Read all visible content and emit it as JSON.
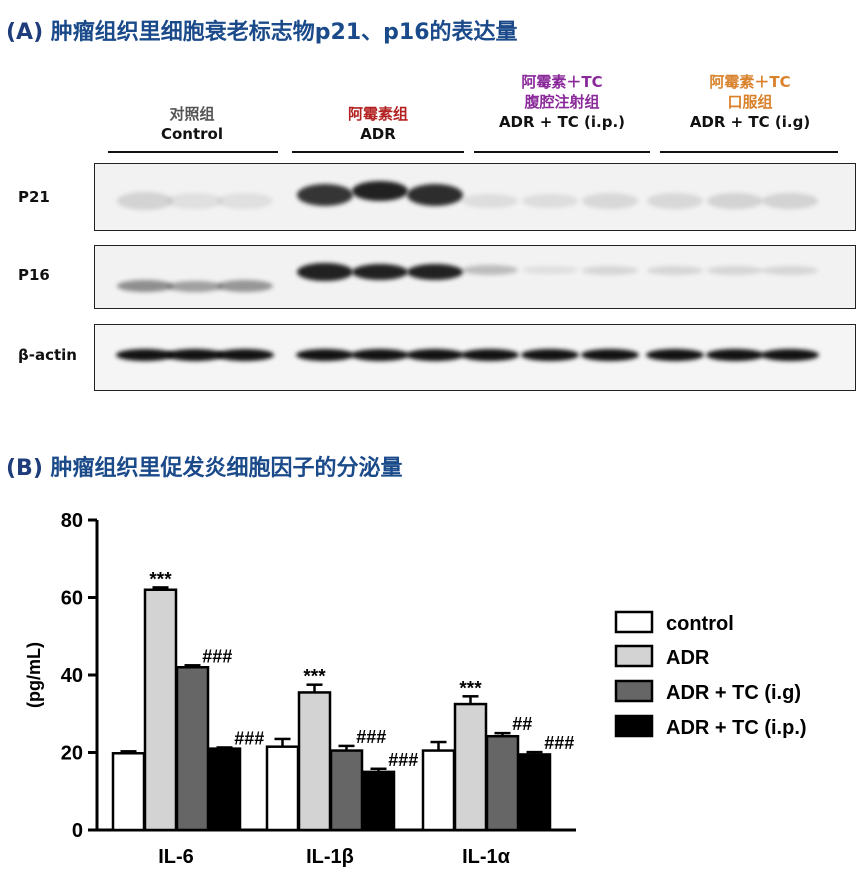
{
  "panel_a": {
    "title_tag": "(A)",
    "title_text": " 肿瘤组织里细胞衰老标志物p21、p16的表达量",
    "groups": [
      {
        "cn": "对照组",
        "en": "Control",
        "cn_color": "#555555"
      },
      {
        "cn": "阿霉素组",
        "en": "ADR",
        "cn_color": "#b32222"
      },
      {
        "cn1": "阿霉素＋TC",
        "cn2": "腹腔注射组",
        "en": "ADR + TC (i.p.)",
        "cn_color": "#8a2a9a"
      },
      {
        "cn1": "阿霉素＋TC",
        "cn2": "口服组",
        "en": "ADR + TC (i.g)",
        "cn_color": "#d9822b"
      }
    ],
    "rows": [
      "P21",
      "P16",
      "β-actin"
    ]
  },
  "panel_b": {
    "title_tag": "(B)",
    "title_text": " 肿瘤组织里促发炎细胞因子的分泌量"
  },
  "chart_data": {
    "type": "bar",
    "categories": [
      "IL-6",
      "IL-1β",
      "IL-1α"
    ],
    "ylabel": "(pg/mL)",
    "ylim": [
      0,
      80
    ],
    "yticks": [
      "0",
      "20",
      "40",
      "60",
      "80"
    ],
    "series": [
      {
        "name": "control",
        "color": "#ffffff",
        "values": [
          19.8,
          21.5,
          20.5
        ],
        "errors": [
          0.5,
          2.0,
          2.2
        ],
        "annotations": [
          "",
          "",
          ""
        ]
      },
      {
        "name": "ADR",
        "color": "#d3d3d3",
        "values": [
          62,
          35.5,
          32.5
        ],
        "errors": [
          0.6,
          2.0,
          2.0
        ],
        "annotations": [
          "***",
          "***",
          "***"
        ]
      },
      {
        "name": "ADR + TC (i.g)",
        "color": "#666666",
        "values": [
          42,
          20.5,
          24.2
        ],
        "errors": [
          0.5,
          1.2,
          0.8
        ],
        "annotations": [
          "###",
          "###",
          "##"
        ]
      },
      {
        "name": "ADR + TC (i.p.)",
        "color": "#000000",
        "values": [
          21,
          15,
          19.5
        ],
        "errors": [
          0.3,
          0.8,
          0.6
        ],
        "annotations": [
          "###",
          "###",
          "###"
        ]
      }
    ]
  }
}
